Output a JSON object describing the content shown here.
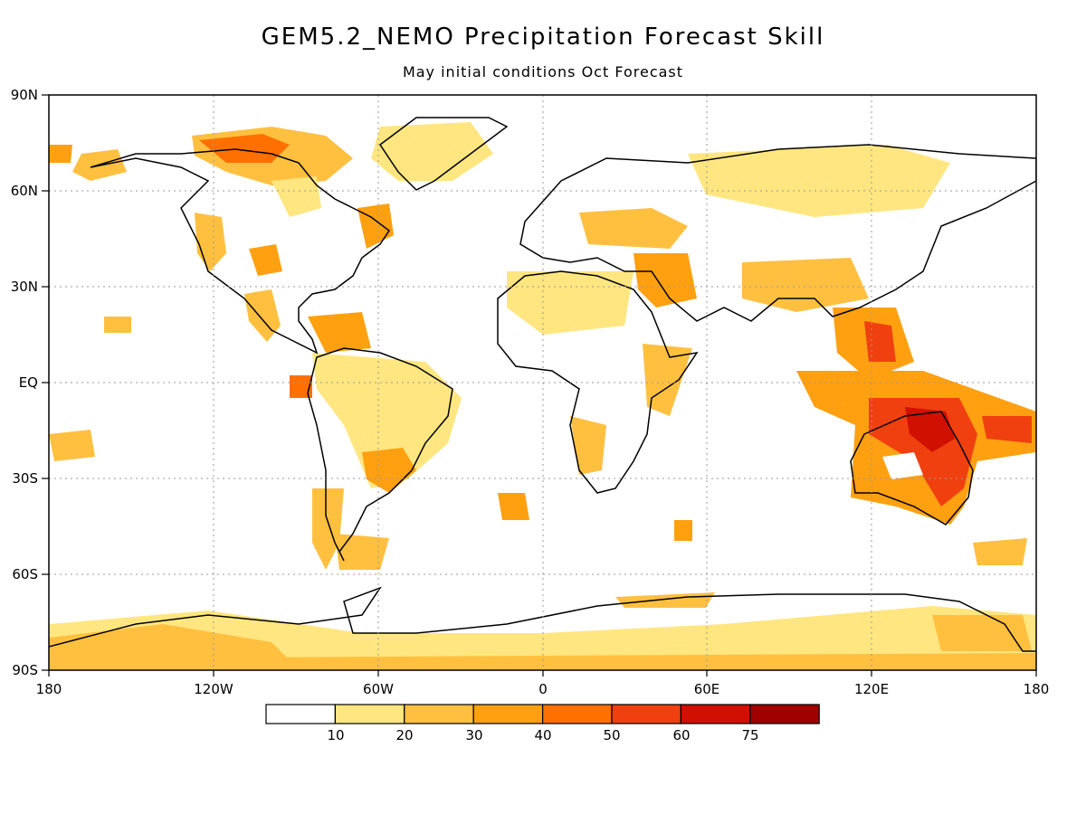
{
  "title": "GEM5.2_NEMO Precipitation Forecast Skill",
  "subtitle": "May initial conditions   Oct Forecast",
  "lat_labels": [
    "90N",
    "60N",
    "30N",
    "EQ",
    "30S",
    "60S",
    "90S"
  ],
  "lon_labels": [
    "180",
    "120W",
    "60W",
    "0",
    "60E",
    "120E",
    "180"
  ],
  "colorbar": {
    "labels": [
      "10",
      "20",
      "30",
      "40",
      "50",
      "60",
      "75"
    ],
    "colors": [
      "#ffffff",
      "#ffe680",
      "#ffc040",
      "#ffa010",
      "#ff7000",
      "#f04010",
      "#d01000",
      "#a00000"
    ]
  }
}
